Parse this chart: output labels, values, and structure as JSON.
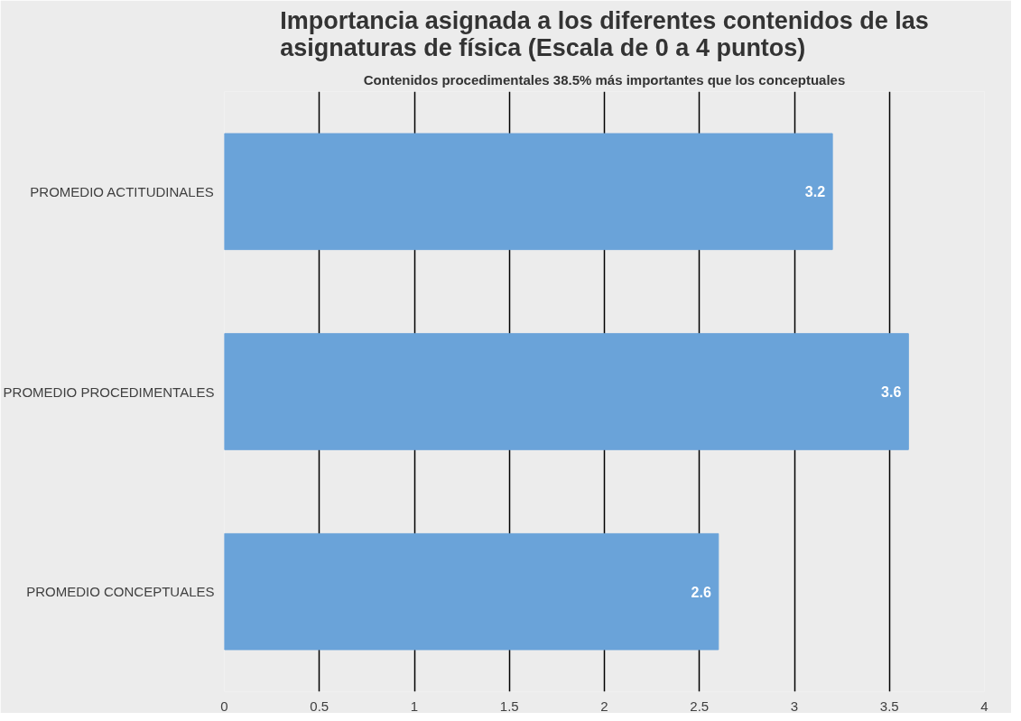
{
  "chart_data": {
    "type": "bar",
    "orientation": "horizontal",
    "title": "Importancia asignada a los diferentes contenidos de las asignaturas de física (Escala de 0 a 4 puntos)",
    "subtitle": "Contenidos procedimentales 38.5% más importantes que los conceptuales",
    "categories": [
      "PROMEDIO ACTITUDINALES",
      "PROMEDIO PROCEDIMENTALES",
      "PROMEDIO CONCEPTUALES"
    ],
    "values": [
      3.2,
      3.6,
      2.6
    ],
    "color": "#6aa3d9",
    "xlim": [
      0,
      4
    ],
    "xticks": [
      0,
      0.5,
      1,
      1.5,
      2,
      2.5,
      3,
      3.5,
      4
    ],
    "grid": "x",
    "data_labels": true
  }
}
